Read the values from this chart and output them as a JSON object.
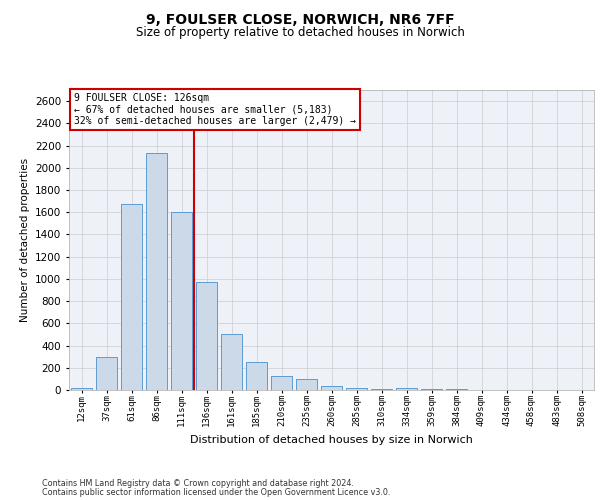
{
  "title1": "9, FOULSER CLOSE, NORWICH, NR6 7FF",
  "title2": "Size of property relative to detached houses in Norwich",
  "xlabel": "Distribution of detached houses by size in Norwich",
  "ylabel": "Number of detached properties",
  "categories": [
    "12sqm",
    "37sqm",
    "61sqm",
    "86sqm",
    "111sqm",
    "136sqm",
    "161sqm",
    "185sqm",
    "210sqm",
    "235sqm",
    "260sqm",
    "285sqm",
    "310sqm",
    "334sqm",
    "359sqm",
    "384sqm",
    "409sqm",
    "434sqm",
    "458sqm",
    "483sqm",
    "508sqm"
  ],
  "values": [
    20,
    300,
    1670,
    2130,
    1600,
    970,
    500,
    250,
    125,
    100,
    35,
    20,
    10,
    20,
    5,
    5,
    3,
    3,
    2,
    2,
    2
  ],
  "bar_color": "#ccd9e8",
  "bar_edge_color": "#5b9bd5",
  "vline_position": 4.5,
  "vline_color": "#cc0000",
  "annotation_line1": "9 FOULSER CLOSE: 126sqm",
  "annotation_line2": "← 67% of detached houses are smaller (5,183)",
  "annotation_line3": "32% of semi-detached houses are larger (2,479) →",
  "ylim": [
    0,
    2700
  ],
  "yticks": [
    0,
    200,
    400,
    600,
    800,
    1000,
    1200,
    1400,
    1600,
    1800,
    2000,
    2200,
    2400,
    2600
  ],
  "grid_color": "#cccccc",
  "plot_bg_color": "#eef2f8",
  "title1_fontsize": 10,
  "title2_fontsize": 8.5,
  "footer1": "Contains HM Land Registry data © Crown copyright and database right 2024.",
  "footer2": "Contains public sector information licensed under the Open Government Licence v3.0."
}
